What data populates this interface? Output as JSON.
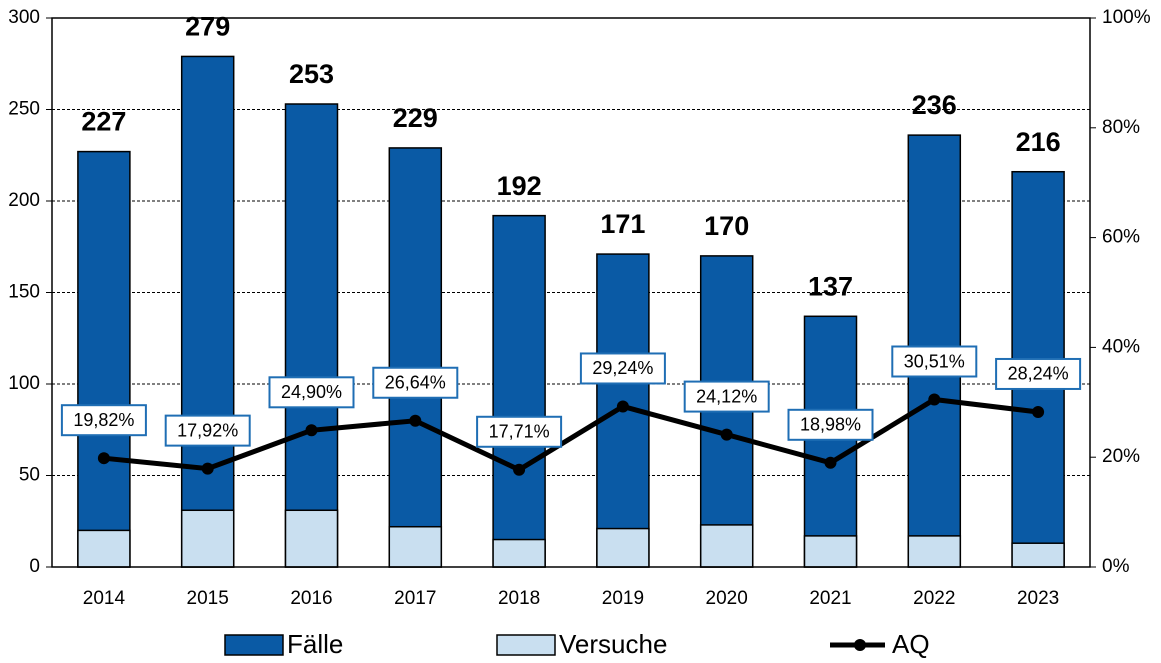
{
  "chart_data": {
    "type": "bar",
    "categories": [
      "2014",
      "2015",
      "2016",
      "2017",
      "2018",
      "2019",
      "2020",
      "2021",
      "2022",
      "2023"
    ],
    "series": [
      {
        "name": "Fälle",
        "color": "#0a5aa5",
        "values": [
          227,
          279,
          253,
          229,
          192,
          171,
          170,
          137,
          236,
          216
        ]
      },
      {
        "name": "Versuche",
        "color": "#c9dff0",
        "values": [
          20,
          31,
          31,
          22,
          15,
          21,
          23,
          17,
          17,
          13
        ]
      },
      {
        "name": "AQ",
        "type": "line",
        "axis": "y2",
        "color": "#000000",
        "values": [
          19.82,
          17.92,
          24.9,
          26.64,
          17.71,
          29.24,
          24.12,
          18.98,
          30.51,
          28.24
        ],
        "value_labels": [
          "19,82%",
          "17,92%",
          "24,90%",
          "26,64%",
          "17,71%",
          "29,24%",
          "24,12%",
          "18,98%",
          "30,51%",
          "28,24%"
        ]
      }
    ],
    "ylim": [
      0,
      300
    ],
    "yticks": [
      0,
      50,
      100,
      150,
      200,
      250,
      300
    ],
    "y2lim": [
      0,
      100
    ],
    "y2ticks": [
      {
        "value": 0,
        "label": "0%"
      },
      {
        "value": 20,
        "label": "20%"
      },
      {
        "value": 40,
        "label": "40%"
      },
      {
        "value": 60,
        "label": "60%"
      },
      {
        "value": 80,
        "label": "80%"
      },
      {
        "value": 100,
        "label": "100%"
      }
    ],
    "grid": true
  }
}
